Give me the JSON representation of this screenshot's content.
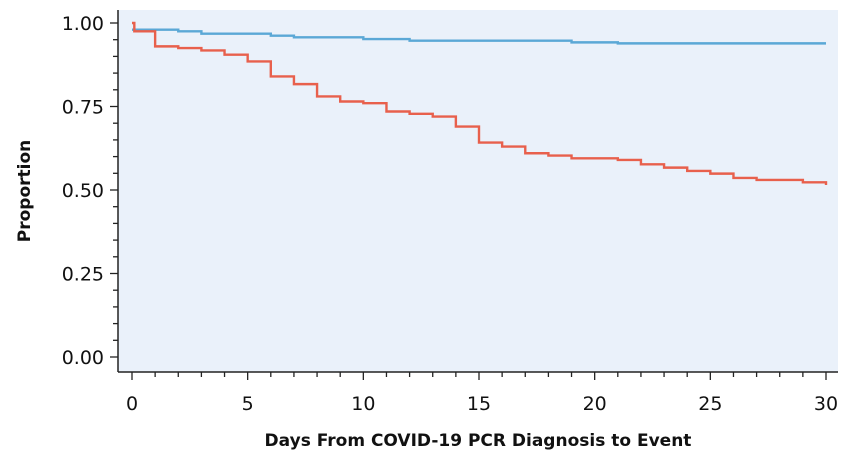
{
  "chart_data": {
    "type": "line",
    "title": "",
    "xlabel": "Days From COVID-19 PCR Diagnosis to Event",
    "ylabel": "Proportion",
    "xlim": [
      0,
      30
    ],
    "ylim": [
      0,
      1
    ],
    "x_ticks": [
      "0",
      "5",
      "10",
      "15",
      "20",
      "25",
      "30"
    ],
    "y_ticks": [
      "0.00",
      "0.25",
      "0.50",
      "0.75",
      "1.00"
    ],
    "grid": false,
    "legend": "none",
    "plot_background": "#eaf1fa",
    "series": [
      {
        "color": "#5ba8d6",
        "x": [
          0,
          2,
          3,
          6,
          7,
          10,
          12,
          19,
          21,
          30
        ],
        "y": [
          0.98,
          0.975,
          0.968,
          0.962,
          0.957,
          0.952,
          0.947,
          0.942,
          0.939,
          0.939
        ]
      },
      {
        "color": "#e8604c",
        "x": [
          0,
          0.1,
          1,
          2,
          3,
          4,
          5,
          6,
          7,
          8,
          9,
          10,
          11,
          12,
          13,
          14,
          15,
          16,
          17,
          18,
          19,
          21,
          22,
          23,
          24,
          25,
          26,
          27,
          29,
          30
        ],
        "y": [
          1.0,
          0.975,
          0.93,
          0.925,
          0.918,
          0.905,
          0.885,
          0.84,
          0.817,
          0.78,
          0.765,
          0.76,
          0.735,
          0.728,
          0.72,
          0.69,
          0.642,
          0.63,
          0.61,
          0.603,
          0.595,
          0.59,
          0.577,
          0.567,
          0.557,
          0.549,
          0.536,
          0.53,
          0.523,
          0.515
        ]
      }
    ]
  }
}
